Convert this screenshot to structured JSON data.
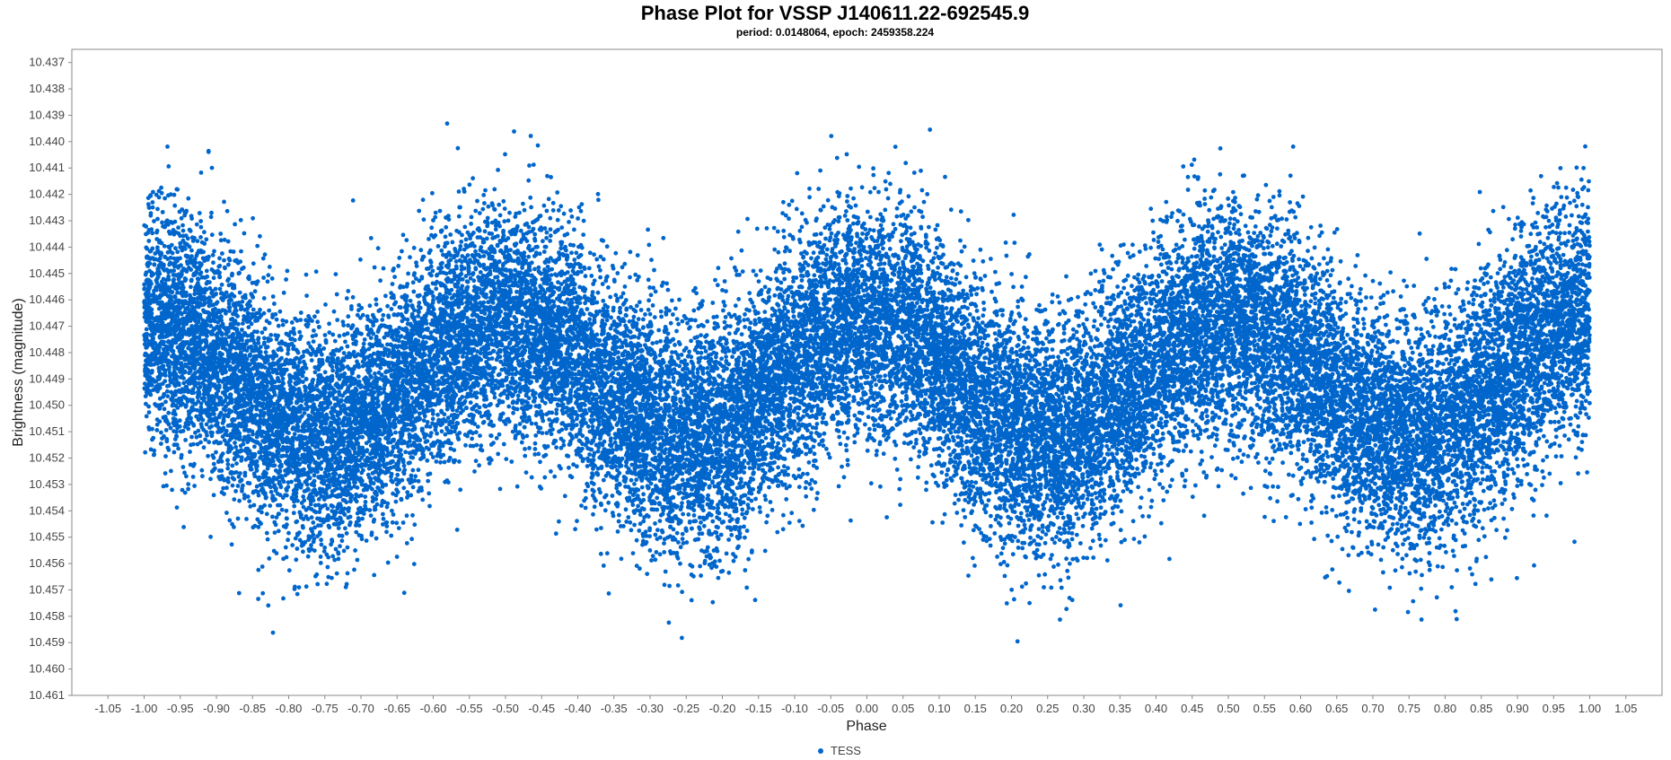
{
  "chart_data": {
    "type": "scatter",
    "title": "Phase Plot for VSSP J140611.22-692545.9",
    "subtitle": "period: 0.0148064, epoch: 2459358.224",
    "xlabel": "Phase",
    "ylabel": "Brightness (magnitude)",
    "xlim": [
      -1.1,
      1.1
    ],
    "ylim": [
      10.4365,
      10.461
    ],
    "y_inverted": true,
    "x_tick_labels": [
      "-1.05",
      "-1.00",
      "-0.95",
      "-0.90",
      "-0.85",
      "-0.80",
      "-0.75",
      "-0.70",
      "-0.65",
      "-0.60",
      "-0.55",
      "-0.50",
      "-0.45",
      "-0.40",
      "-0.35",
      "-0.30",
      "-0.25",
      "-0.20",
      "-0.15",
      "-0.10",
      "-0.05",
      "0.00",
      "0.05",
      "0.10",
      "0.15",
      "0.20",
      "0.25",
      "0.30",
      "0.35",
      "0.40",
      "0.45",
      "0.50",
      "0.55",
      "0.60",
      "0.65",
      "0.70",
      "0.75",
      "0.80",
      "0.85",
      "0.90",
      "0.95",
      "1.00",
      "1.05"
    ],
    "y_tick_labels": [
      "10.437",
      "10.438",
      "10.439",
      "10.440",
      "10.441",
      "10.442",
      "10.443",
      "10.444",
      "10.445",
      "10.446",
      "10.447",
      "10.448",
      "10.449",
      "10.450",
      "10.451",
      "10.452",
      "10.453",
      "10.454",
      "10.455",
      "10.456",
      "10.457",
      "10.458",
      "10.459",
      "10.460",
      "10.461"
    ],
    "grid": false,
    "legend_position": "bottom-center",
    "series": [
      {
        "name": "TESS",
        "color": "#0066cc",
        "x_range": [
          -1.0,
          1.0
        ],
        "model": {
          "curve": "double-wave",
          "mean_magnitude": 10.449,
          "semi_amplitude": 0.0022,
          "scatter_sigma": 0.0022,
          "maxima_phase": [
            -1.0,
            0.0,
            1.0
          ],
          "minima_phase": [
            -0.5,
            0.5
          ]
        },
        "point_count": 30000
      }
    ]
  },
  "legend": {
    "entries": [
      {
        "label": "TESS",
        "color": "#0066cc"
      }
    ]
  }
}
